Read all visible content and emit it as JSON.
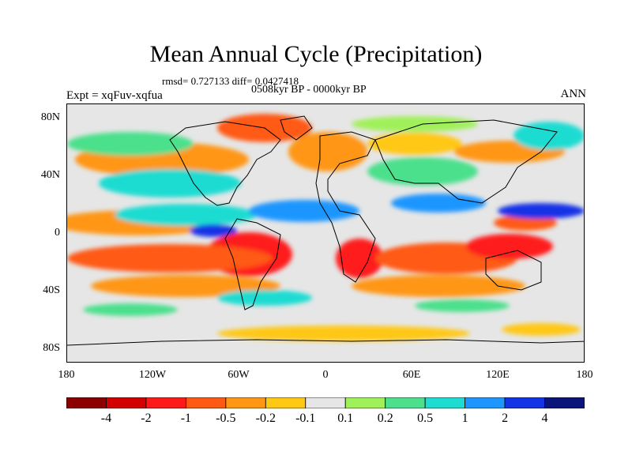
{
  "title": "Mean Annual Cycle (Precipitation)",
  "stats_line": "rmsd= 0.727133 diff= 0.0427418",
  "period_line": "0508kyr BP - 0000kyr BP",
  "experiment_label": "Expt = xqFuv-xqfua",
  "season_label": "ANN",
  "y_ticks": [
    "80N",
    "40N",
    "0",
    "40S",
    "80S"
  ],
  "x_ticks": [
    "180",
    "120W",
    "60W",
    "0",
    "60E",
    "120E",
    "180"
  ],
  "colorbar": {
    "colors": [
      "#8c0000",
      "#d20000",
      "#ff1a1a",
      "#ff5a14",
      "#ff9614",
      "#ffc814",
      "#e6e6e6",
      "#a0f05a",
      "#4ce08c",
      "#1edcd2",
      "#1e96ff",
      "#1432e6",
      "#0a147a"
    ],
    "labels": [
      "-4",
      "-2",
      "-1",
      "-0.5",
      "-0.2",
      "-0.1",
      "0.1",
      "0.2",
      "0.5",
      "1",
      "2",
      "4"
    ]
  },
  "colors": {
    "background": "#ffffff",
    "land_outline": "#000000",
    "neutral_fill": "#e6e6e6"
  }
}
